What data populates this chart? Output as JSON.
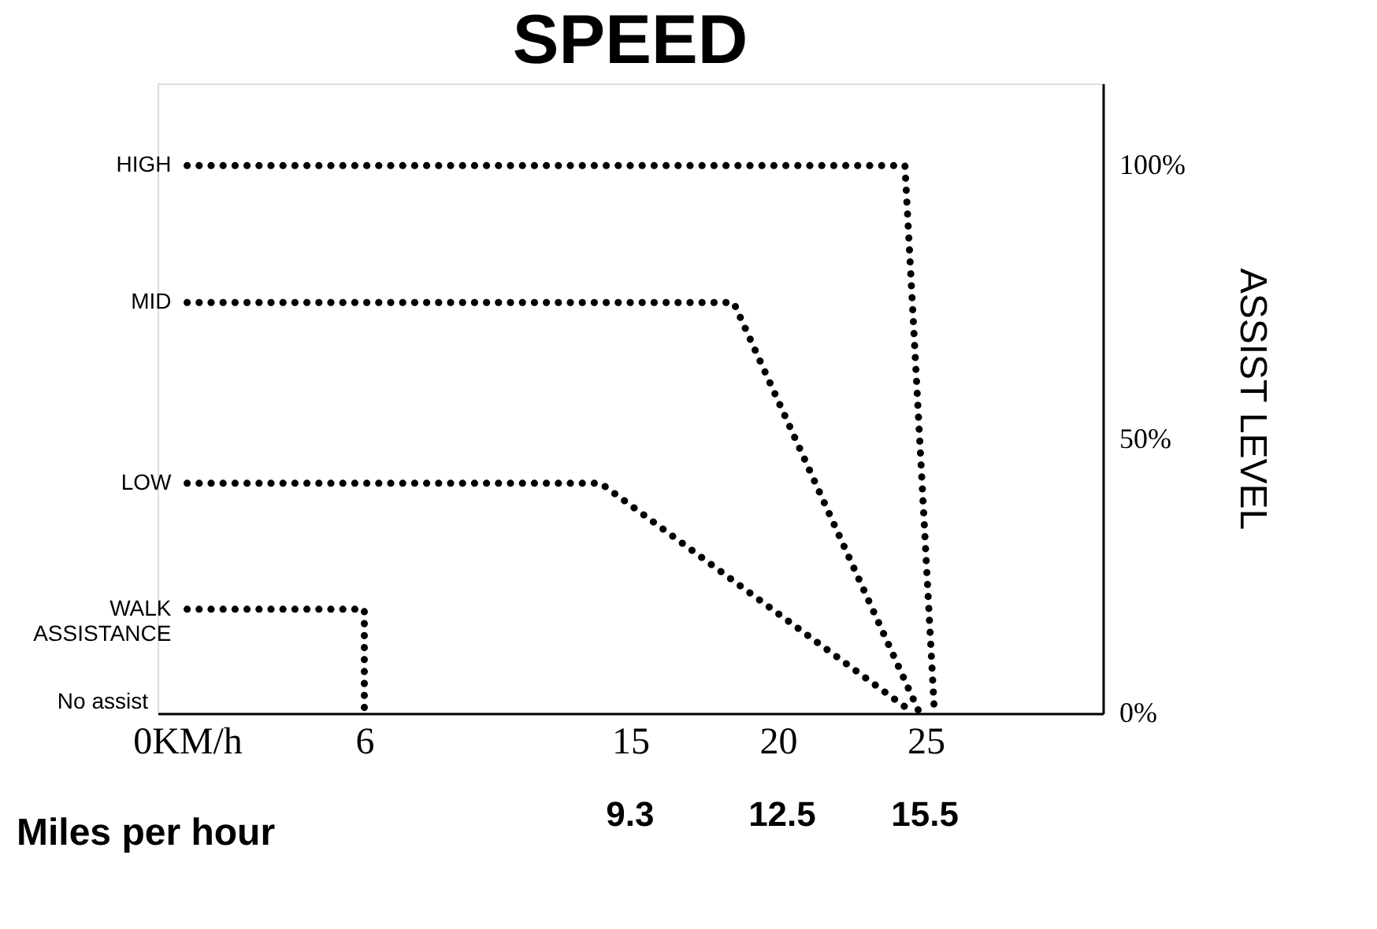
{
  "chart_data": {
    "type": "line",
    "title": "SPEED",
    "ylabel": "ASSIST LEVEL",
    "x2label": "Miles per hour",
    "xlim": [
      -1,
      31
    ],
    "xticks": [
      {
        "value": 0,
        "label": "0KM/h"
      },
      6,
      15,
      20,
      25
    ],
    "x2lim": [
      -0.62,
      19.26
    ],
    "x2ticks": [
      9.3,
      12.5,
      15.5
    ],
    "annotations": [
      "No assist"
    ],
    "ylim": [
      0,
      115
    ],
    "yticks": [
      {
        "value": 0,
        "label": "0%"
      },
      {
        "value": 50,
        "label": "50%"
      },
      {
        "value": 100,
        "label": "100%"
      }
    ],
    "series": [
      {
        "name": "HIGH",
        "color": "#000000",
        "x": [
          0,
          24.3,
          25.3
        ],
        "values": [
          100,
          100,
          0
        ]
      },
      {
        "name": "MID",
        "color": "#000000",
        "x": [
          0,
          18.5,
          24.8
        ],
        "values": [
          75,
          75,
          0
        ]
      },
      {
        "name": "LOW",
        "color": "#000000",
        "x": [
          0,
          14,
          24.6
        ],
        "values": [
          42,
          42,
          0
        ]
      },
      {
        "name": "WALK\nASSISTANCE",
        "color": "#000000",
        "x": [
          0,
          6,
          6
        ],
        "values": [
          19,
          19,
          0
        ]
      }
    ],
    "line_style": "dotted",
    "marker": "none",
    "grid": false,
    "legend": false
  }
}
